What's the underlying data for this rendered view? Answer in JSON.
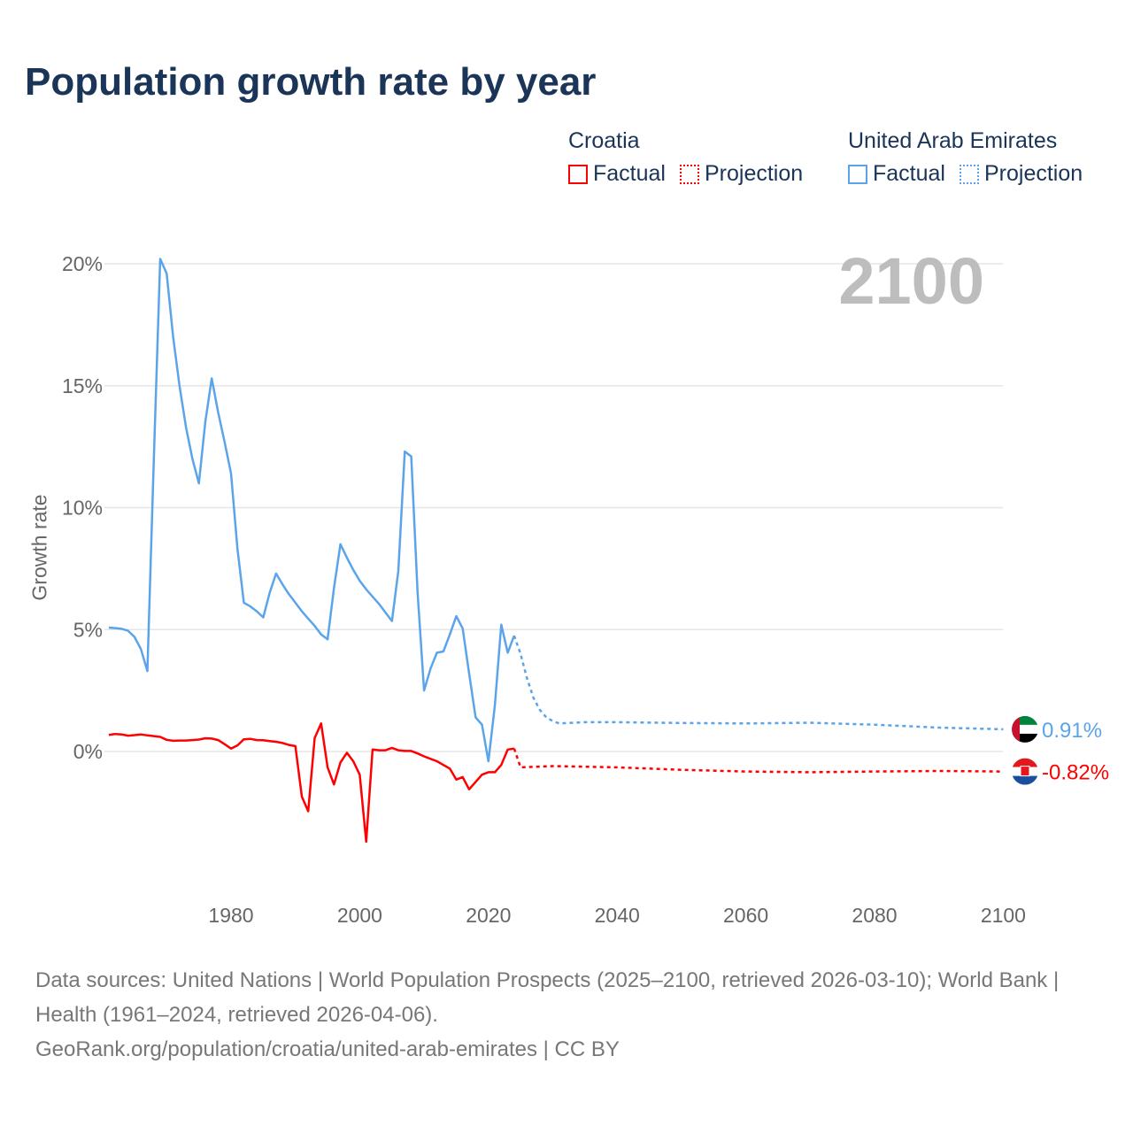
{
  "title": "Population growth rate by year",
  "current_year": "2100",
  "legend": [
    {
      "country": "Croatia",
      "factual": "Factual",
      "projection": "Projection",
      "color": "#ff0000"
    },
    {
      "country": "United Arab Emirates",
      "factual": "Factual",
      "projection": "Projection",
      "color": "#5ba4ea"
    }
  ],
  "end_labels": {
    "uae": "0.91%",
    "croatia": "-0.82%"
  },
  "footer": {
    "sources": "Data sources: United Nations | World Population Prospects (2025–2100, retrieved 2026-03-10); World Bank | Health (1961–2024, retrieved 2026-04-06).",
    "credit": "GeoRank.org/population/croatia/united-arab-emirates | CC BY"
  },
  "chart_data": {
    "type": "line",
    "title": "Population growth rate by year",
    "xlabel": "",
    "ylabel": "Growth rate",
    "xlim": [
      1960,
      2100
    ],
    "ylim": [
      -5,
      21
    ],
    "x_ticks": [
      1980,
      2000,
      2020,
      2040,
      2060,
      2080,
      2100
    ],
    "x_tick_labels": [
      "1980",
      "2000",
      "2020",
      "2040",
      "2060",
      "2080",
      "2100"
    ],
    "y_ticks": [
      0,
      5,
      10,
      15,
      20
    ],
    "y_tick_labels": [
      "0%",
      "5%",
      "10%",
      "15%",
      "20%"
    ],
    "series": [
      {
        "name": "United Arab Emirates",
        "kind": "factual",
        "color": "#5ba4ea",
        "start_year": 1961,
        "values": [
          5.08,
          5.06,
          5.03,
          4.95,
          4.7,
          4.2,
          3.3,
          12.0,
          20.2,
          19.6,
          17.0,
          15.0,
          13.3,
          12.0,
          11.0,
          13.5,
          15.3,
          13.9,
          12.7,
          11.4,
          8.3,
          6.1,
          5.95,
          5.75,
          5.5,
          6.5,
          7.3,
          6.85,
          6.45,
          6.1,
          5.75,
          5.45,
          5.15,
          4.8,
          4.6,
          6.7,
          8.5,
          7.95,
          7.45,
          7.0,
          6.65,
          6.35,
          6.05,
          5.7,
          5.35,
          7.4,
          12.3,
          12.1,
          6.5,
          2.5,
          3.4,
          4.05,
          4.1,
          4.8,
          5.55,
          5.05,
          3.2,
          1.4,
          1.1,
          -0.4,
          1.9,
          5.2,
          4.05,
          4.75
        ]
      },
      {
        "name": "United Arab Emirates",
        "kind": "projection",
        "color": "#5ba4ea",
        "points": [
          [
            2024,
            4.75
          ],
          [
            2025,
            4.0
          ],
          [
            2026,
            3.0
          ],
          [
            2027,
            2.2
          ],
          [
            2028,
            1.7
          ],
          [
            2029,
            1.4
          ],
          [
            2030,
            1.25
          ],
          [
            2031,
            1.15
          ],
          [
            2035,
            1.2
          ],
          [
            2040,
            1.2
          ],
          [
            2050,
            1.17
          ],
          [
            2060,
            1.15
          ],
          [
            2070,
            1.18
          ],
          [
            2080,
            1.1
          ],
          [
            2090,
            0.98
          ],
          [
            2100,
            0.91
          ]
        ]
      },
      {
        "name": "Croatia",
        "kind": "factual",
        "color": "#ff0000",
        "start_year": 1961,
        "values": [
          0.68,
          0.72,
          0.7,
          0.65,
          0.67,
          0.7,
          0.66,
          0.63,
          0.6,
          0.48,
          0.44,
          0.45,
          0.45,
          0.47,
          0.49,
          0.54,
          0.53,
          0.47,
          0.3,
          0.12,
          0.25,
          0.5,
          0.52,
          0.47,
          0.46,
          0.43,
          0.4,
          0.35,
          0.27,
          0.22,
          -1.85,
          -2.45,
          0.55,
          1.15,
          -0.65,
          -1.35,
          -0.45,
          -0.05,
          -0.4,
          -0.95,
          -3.7,
          0.08,
          0.05,
          0.05,
          0.15,
          0.05,
          0.02,
          0.02,
          -0.08,
          -0.2,
          -0.3,
          -0.4,
          -0.55,
          -0.7,
          -1.15,
          -1.05,
          -1.55,
          -1.25,
          -0.95,
          -0.85,
          -0.85,
          -0.55,
          0.08,
          0.12
        ]
      },
      {
        "name": "Croatia",
        "kind": "projection",
        "color": "#ff0000",
        "points": [
          [
            2024,
            0.12
          ],
          [
            2025,
            -0.65
          ],
          [
            2030,
            -0.6
          ],
          [
            2040,
            -0.65
          ],
          [
            2050,
            -0.75
          ],
          [
            2060,
            -0.82
          ],
          [
            2070,
            -0.85
          ],
          [
            2080,
            -0.82
          ],
          [
            2090,
            -0.8
          ],
          [
            2100,
            -0.82
          ]
        ]
      }
    ]
  }
}
